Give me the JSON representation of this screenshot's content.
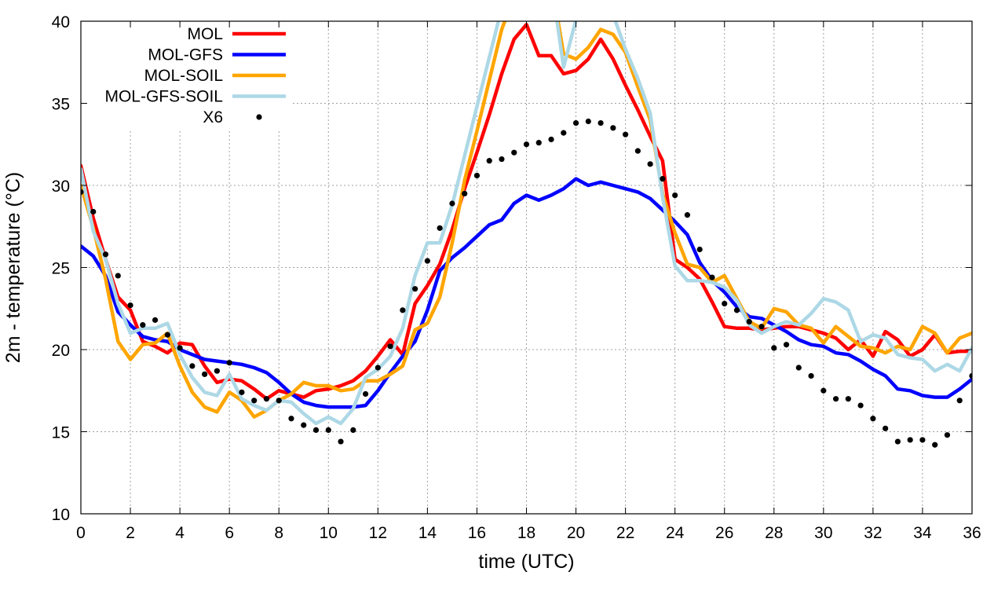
{
  "chart_data": {
    "type": "line",
    "title": "",
    "xlabel": "time (UTC)",
    "ylabel": "2m - temperature (°C)",
    "xlim": [
      0,
      36
    ],
    "ylim": [
      10,
      40
    ],
    "xticks": [
      0,
      2,
      4,
      6,
      8,
      10,
      12,
      14,
      16,
      18,
      20,
      22,
      24,
      26,
      28,
      30,
      32,
      34,
      36
    ],
    "yticks": [
      10,
      15,
      20,
      25,
      30,
      35,
      40
    ],
    "grid": true,
    "legend_position": "top-left",
    "series": [
      {
        "name": "MOL",
        "color": "#ff0000",
        "style": "line",
        "x": [
          0,
          0.5,
          1,
          1.5,
          2,
          2.5,
          3,
          3.5,
          4,
          4.5,
          5,
          5.5,
          6,
          6.5,
          7,
          7.5,
          8,
          8.5,
          9,
          9.5,
          10,
          10.5,
          11,
          11.5,
          12,
          12.5,
          13,
          13.5,
          14,
          14.5,
          15,
          15.5,
          16,
          16.5,
          17,
          17.5,
          18,
          18.5,
          19,
          19.5,
          20,
          20.5,
          21,
          21.5,
          22,
          22.5,
          23,
          23.5,
          24,
          24.5,
          25,
          25.5,
          26,
          26.5,
          27,
          27.5,
          28,
          28.5,
          29,
          29.5,
          30,
          30.5,
          31,
          31.5,
          32,
          32.5,
          33,
          33.5,
          34,
          34.5,
          35,
          35.5,
          36
        ],
        "y": [
          31.2,
          28,
          25.5,
          23.2,
          22.4,
          20.5,
          20.2,
          19.8,
          20.4,
          20.3,
          19,
          18,
          18.2,
          18.1,
          17.6,
          17,
          17.5,
          17.3,
          17.1,
          17.5,
          17.6,
          17.8,
          18.1,
          18.7,
          19.6,
          20.6,
          19.7,
          22.8,
          23.9,
          25.2,
          27.3,
          29.8,
          32,
          34.3,
          36.8,
          38.9,
          39.8,
          37.9,
          37.9,
          36.8,
          37,
          37.7,
          38.9,
          37.7,
          36.1,
          34.6,
          33,
          31.5,
          25.5,
          25,
          24.3,
          22.9,
          21.4,
          21.3,
          21.3,
          21.2,
          21.3,
          21.4,
          21.4,
          21.2,
          21,
          20.7,
          20,
          20.6,
          19.6,
          21.1,
          20.6,
          19.6,
          20,
          20.9,
          19.8,
          19.9,
          19.9
        ]
      },
      {
        "name": "MOL-GFS",
        "color": "#0000ff",
        "style": "line",
        "x": [
          0,
          0.5,
          1,
          1.5,
          2,
          2.5,
          3,
          3.5,
          4,
          4.5,
          5,
          5.5,
          6,
          6.5,
          7,
          7.5,
          8,
          8.5,
          9,
          9.5,
          10,
          10.5,
          11,
          11.5,
          12,
          12.5,
          13,
          13.5,
          14,
          14.5,
          15,
          15.5,
          16,
          16.5,
          17,
          17.5,
          18,
          18.5,
          19,
          19.5,
          20,
          20.5,
          21,
          21.5,
          22,
          22.5,
          23,
          23.5,
          24,
          24.5,
          25,
          25.5,
          26,
          26.5,
          27,
          27.5,
          28,
          28.5,
          29,
          29.5,
          30,
          30.5,
          31,
          31.5,
          32,
          32.5,
          33,
          33.5,
          34,
          34.5,
          35,
          35.5,
          36
        ],
        "y": [
          26.3,
          25.7,
          24.5,
          22.3,
          21.5,
          20.8,
          20.6,
          20.5,
          20,
          19.7,
          19.4,
          19.3,
          19.2,
          19.1,
          18.9,
          18.6,
          18,
          17.3,
          16.8,
          16.6,
          16.5,
          16.5,
          16.5,
          16.6,
          17.5,
          18.6,
          19.6,
          20.5,
          22.4,
          24.8,
          25.6,
          26.2,
          26.9,
          27.6,
          27.9,
          28.9,
          29.4,
          29.1,
          29.4,
          29.8,
          30.4,
          30,
          30.2,
          30,
          29.8,
          29.6,
          29.2,
          28.5,
          27.8,
          27,
          25.3,
          24.2,
          23.5,
          22.6,
          22,
          21.9,
          21.5,
          21.1,
          20.6,
          20.3,
          20.2,
          19.8,
          19.7,
          19.3,
          18.8,
          18.4,
          17.6,
          17.5,
          17.2,
          17.1,
          17.1,
          17.6,
          18.2
        ]
      },
      {
        "name": "MOL-SOIL",
        "color": "#ffa500",
        "style": "line",
        "x": [
          0,
          0.5,
          1,
          1.5,
          2,
          2.5,
          3,
          3.5,
          4,
          4.5,
          5,
          5.5,
          6,
          6.5,
          7,
          7.5,
          8,
          8.5,
          9,
          9.5,
          10,
          10.5,
          11,
          11.5,
          12,
          12.5,
          13,
          13.5,
          14,
          14.5,
          15,
          15.5,
          16,
          16.5,
          17,
          17.5,
          18,
          18.5,
          19,
          19.5,
          20,
          20.5,
          21,
          21.5,
          22,
          22.5,
          23,
          23.5,
          24,
          24.5,
          25,
          25.5,
          26,
          26.5,
          27,
          27.5,
          28,
          28.5,
          29,
          29.5,
          30,
          30.5,
          31,
          31.5,
          32,
          32.5,
          33,
          33.5,
          34,
          34.5,
          35,
          35.5,
          36
        ],
        "y": [
          30,
          27.4,
          24.3,
          20.5,
          19.4,
          20.3,
          20.4,
          21,
          19,
          17.4,
          16.5,
          16.2,
          17.4,
          16.9,
          15.9,
          16.3,
          16.9,
          17.3,
          18,
          17.8,
          17.8,
          17.5,
          17.6,
          18.1,
          18.1,
          18.5,
          19,
          21.2,
          21.6,
          23.2,
          26.5,
          30.3,
          33.3,
          36.4,
          39.5,
          41.5,
          42.5,
          42.5,
          42.5,
          38,
          37.7,
          38.4,
          39.5,
          39.2,
          38.1,
          36,
          34,
          29.5,
          27.1,
          25.2,
          25,
          24.1,
          24.5,
          23.1,
          21.7,
          21.3,
          22.5,
          22.3,
          21.5,
          21.3,
          20.4,
          21.4,
          20.8,
          20.2,
          20.1,
          19.8,
          20.2,
          20,
          21.4,
          21,
          19.8,
          20.7,
          21
        ]
      },
      {
        "name": "MOL-GFS-SOIL",
        "color": "#add8e6",
        "style": "line",
        "x": [
          0,
          0.5,
          1,
          1.5,
          2,
          2.5,
          3,
          3.5,
          4,
          4.5,
          5,
          5.5,
          6,
          6.5,
          7,
          7.5,
          8,
          8.5,
          9,
          9.5,
          10,
          10.5,
          11,
          11.5,
          12,
          12.5,
          13,
          13.5,
          14,
          14.5,
          15,
          15.5,
          16,
          16.5,
          17,
          17.5,
          18,
          18.5,
          19,
          19.5,
          20,
          20.5,
          21,
          21.5,
          22,
          22.5,
          23,
          23.5,
          24,
          24.5,
          25,
          25.5,
          26,
          26.5,
          27,
          27.5,
          28,
          28.5,
          29,
          29.5,
          30,
          30.5,
          31,
          31.5,
          32,
          32.5,
          33,
          33.5,
          34,
          34.5,
          35,
          35.5,
          36
        ],
        "y": [
          31,
          27.2,
          25.5,
          22.8,
          21,
          21.3,
          21.3,
          21.6,
          19.7,
          18.3,
          17.4,
          17.2,
          18.5,
          17,
          16.6,
          16.3,
          16.9,
          16.8,
          16.1,
          15.5,
          15.9,
          15.5,
          16.4,
          18.3,
          18.8,
          19.6,
          21.3,
          24.5,
          26.5,
          26.5,
          28.8,
          31.8,
          34.8,
          37.8,
          40.8,
          42.5,
          42.5,
          42.5,
          42.5,
          37.2,
          40.1,
          42.5,
          42.5,
          40.4,
          38.3,
          36.5,
          34.4,
          29.3,
          25.1,
          24.2,
          24.2,
          24.1,
          23.8,
          23,
          21.5,
          21,
          21.4,
          21.7,
          21.5,
          22.2,
          23.1,
          22.9,
          22.4,
          20.5,
          20.9,
          20.7,
          19.7,
          19.5,
          19.4,
          18.7,
          19.1,
          18.7,
          20.1
        ]
      },
      {
        "name": "X6",
        "color": "#000000",
        "style": "points",
        "x": [
          0,
          0.5,
          1,
          1.5,
          2,
          2.5,
          3,
          3.5,
          4,
          4.5,
          5,
          5.5,
          6,
          6.5,
          7,
          7.5,
          8,
          8.5,
          9,
          9.5,
          10,
          10.5,
          11,
          11.5,
          12,
          12.5,
          13,
          13.5,
          14,
          14.5,
          15,
          15.5,
          16,
          16.5,
          17,
          17.5,
          18,
          18.5,
          19,
          19.5,
          20,
          20.5,
          21,
          21.5,
          22,
          22.5,
          23,
          23.5,
          24,
          24.5,
          25,
          25.5,
          26,
          26.5,
          27,
          27.5,
          28,
          28.5,
          29,
          29.5,
          30,
          30.5,
          31,
          31.5,
          32,
          32.5,
          33,
          33.5,
          34,
          34.5,
          35,
          35.5,
          36
        ],
        "y": [
          29.6,
          28.4,
          25.8,
          24.5,
          22.7,
          21.5,
          21.8,
          20.9,
          20.1,
          19,
          18.5,
          18.7,
          19.2,
          17.4,
          16.9,
          17,
          16.9,
          15.8,
          15.4,
          15.1,
          15.1,
          14.4,
          15.1,
          17.3,
          18.9,
          20.2,
          22.4,
          23.7,
          25.4,
          27.4,
          28.9,
          29.5,
          30.6,
          31.5,
          31.6,
          32,
          32.5,
          32.6,
          32.8,
          33.2,
          33.8,
          33.9,
          33.8,
          33.5,
          33.1,
          32.1,
          31.3,
          30.4,
          29.4,
          28.2,
          26.1,
          24.4,
          22.8,
          22.4,
          21.7,
          21.4,
          20.1,
          20.3,
          18.9,
          18.4,
          17.5,
          17,
          17,
          16.6,
          15.8,
          15.2,
          14.4,
          14.5,
          14.5,
          14.2,
          14.8,
          16.9,
          18.4
        ]
      }
    ]
  }
}
